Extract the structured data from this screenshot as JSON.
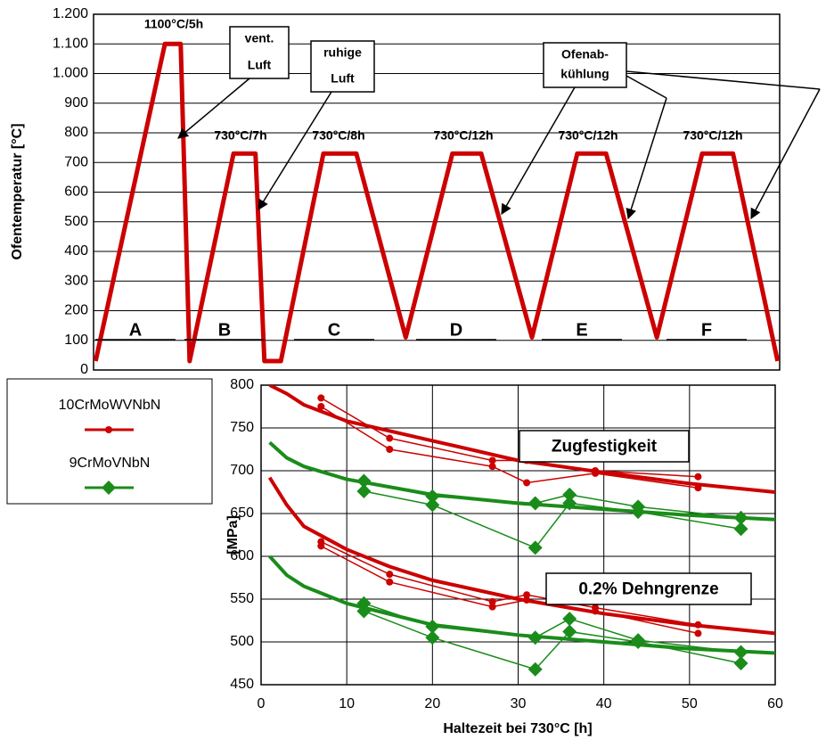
{
  "chart_data": [
    {
      "type": "line",
      "ylabel": "Ofentemperatur [°C]",
      "ylim": [
        0,
        1200
      ],
      "yticks": [
        0,
        100,
        200,
        300,
        400,
        500,
        600,
        700,
        800,
        900,
        {
          "value": 1000,
          "label": "1.000"
        },
        {
          "value": 1100,
          "label": "1.100"
        },
        {
          "value": 1200,
          "label": "1.200"
        }
      ],
      "xlim": [
        0,
        100
      ],
      "x": [
        0.3,
        10.4,
        12.7,
        14.0,
        20.4,
        23.6,
        24.9,
        27.3,
        33.5,
        38.3,
        45.5,
        52.3,
        56.5,
        63.9,
        70.5,
        74.7,
        82.1,
        88.7,
        93.2,
        99.7
      ],
      "values": [
        30,
        1100,
        1100,
        30,
        730,
        730,
        30,
        30,
        730,
        730,
        110,
        730,
        730,
        110,
        730,
        730,
        110,
        730,
        730,
        30
      ],
      "color": "#cc0000",
      "labels": [
        "1100°C/5h",
        "730°C/7h",
        "730°C/8h",
        "730°C/12h",
        "730°C/12h",
        "730°C/12h"
      ],
      "boxed": [
        [
          "vent.",
          "Luft"
        ],
        [
          "ruhige",
          "Luft"
        ],
        [
          "Ofenab-",
          "kühlung"
        ]
      ],
      "phases": [
        "A",
        "B",
        "C",
        "D",
        "E",
        "F"
      ],
      "grid": true
    },
    {
      "type": "line",
      "xlabel": "Haltezeit bei 730°C [h]",
      "ylabel": "[MPa]",
      "xlim": [
        0,
        60
      ],
      "xticks": [
        0,
        10,
        20,
        30,
        40,
        50,
        60
      ],
      "ylim": [
        450,
        800
      ],
      "yticks": [
        450,
        500,
        550,
        600,
        650,
        700,
        750,
        800
      ],
      "grid": true,
      "annotations": [
        "Zugfestigkeit",
        "0.2% Dehngrenze"
      ],
      "series": [
        {
          "name": "10CrMoWVNbN",
          "color": "#cc0000",
          "marker": "circle",
          "tensile": [
            {
              "x": [
                7,
                15,
                27,
                31,
                39,
                51
              ],
              "values": [
                785,
                738,
                712,
                712,
                700,
                693
              ]
            },
            {
              "x": [
                7,
                15,
                27,
                31,
                39,
                51
              ],
              "values": [
                775,
                725,
                705,
                686,
                697,
                680
              ]
            }
          ],
          "yield": [
            {
              "x": [
                7,
                15,
                27,
                31,
                39,
                51
              ],
              "values": [
                617,
                579,
                547,
                555,
                540,
                520
              ]
            },
            {
              "x": [
                7,
                15,
                27,
                31,
                39,
                51
              ],
              "values": [
                612,
                570,
                541,
                549,
                536,
                510
              ]
            }
          ],
          "tensile_fit": {
            "x": [
              1,
              3,
              5,
              10,
              20,
              30,
              40,
              50,
              60
            ],
            "values": [
              800,
              790,
              777,
              758,
              735,
              712,
              698,
              685,
              675
            ]
          },
          "yield_fit": {
            "x": [
              1,
              3,
              5,
              10,
              15,
              20,
              30,
              40,
              50,
              60
            ],
            "values": [
              692,
              660,
              635,
              608,
              588,
              572,
              550,
              533,
              520,
              510
            ]
          }
        },
        {
          "name": "9CrMoVNbN",
          "color": "#1a8c1a",
          "marker": "diamond",
          "tensile": [
            {
              "x": [
                12,
                20,
                32,
                36,
                44,
                56
              ],
              "values": [
                688,
                670,
                662,
                672,
                658,
                645
              ]
            },
            {
              "x": [
                12,
                20,
                32,
                36,
                44,
                56
              ],
              "values": [
                676,
                660,
                610,
                662,
                652,
                632
              ]
            }
          ],
          "yield": [
            {
              "x": [
                12,
                20,
                32,
                36,
                44,
                56
              ],
              "values": [
                545,
                518,
                505,
                527,
                502,
                488
              ]
            },
            {
              "x": [
                12,
                20,
                32,
                36,
                44,
                56
              ],
              "values": [
                536,
                505,
                468,
                512,
                500,
                475
              ]
            }
          ],
          "tensile_fit": {
            "x": [
              1,
              3,
              5,
              10,
              20,
              30,
              40,
              50,
              60
            ],
            "values": [
              733,
              715,
              705,
              690,
              672,
              662,
              655,
              648,
              643
            ]
          },
          "yield_fit": {
            "x": [
              1,
              3,
              5,
              10,
              20,
              30,
              40,
              50,
              60
            ],
            "values": [
              600,
              578,
              565,
              545,
              520,
              508,
              500,
              492,
              487
            ]
          }
        }
      ]
    }
  ]
}
